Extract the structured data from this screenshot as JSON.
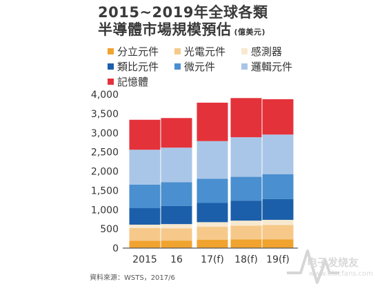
{
  "title_line1": "2015~2019年全球各類",
  "title_line2": "半導體市場規模預估",
  "unit": "(億美元)",
  "source": "資料來源：WSTS，2017/6",
  "watermark": {
    "text": "电子发烧友",
    "url": "www.elecfans.com"
  },
  "colors": {
    "discrete": "#f0a32e",
    "opto": "#f6c98a",
    "sensor": "#f7e9cf",
    "analog": "#1b5faa",
    "micro": "#4a8fcf",
    "logic": "#a9c6e8",
    "memory": "#e4323a"
  },
  "chart_data": {
    "type": "bar",
    "stacked": true,
    "categories": [
      "2015",
      "16",
      "17(f)",
      "18(f)",
      "19(f)"
    ],
    "series": [
      {
        "name": "分立元件",
        "key": "discrete",
        "values": [
          190,
          195,
          215,
          225,
          230
        ]
      },
      {
        "name": "光電元件",
        "key": "opto",
        "values": [
          330,
          320,
          340,
          360,
          370
        ]
      },
      {
        "name": "感測器",
        "key": "sensor",
        "values": [
          90,
          110,
          120,
          130,
          135
        ]
      },
      {
        "name": "類比元件",
        "key": "analog",
        "values": [
          430,
          470,
          500,
          520,
          540
        ]
      },
      {
        "name": "微元件",
        "key": "micro",
        "values": [
          610,
          620,
          630,
          620,
          650
        ]
      },
      {
        "name": "邏輯元件",
        "key": "logic",
        "values": [
          910,
          900,
          980,
          1030,
          1030
        ]
      },
      {
        "name": "記憶體",
        "key": "memory",
        "values": [
          780,
          770,
          1000,
          1020,
          920
        ]
      }
    ],
    "legend_order": [
      "分立元件",
      "光電元件",
      "感測器",
      "類比元件",
      "微元件",
      "邏輯元件",
      "記憶體"
    ],
    "yticks": [
      "0",
      "500",
      "1,000",
      "1,500",
      "2,000",
      "2,500",
      "3,000",
      "3,500",
      "4,000"
    ],
    "ylim": [
      0,
      4000
    ],
    "grid": false,
    "legend_position": "top"
  }
}
